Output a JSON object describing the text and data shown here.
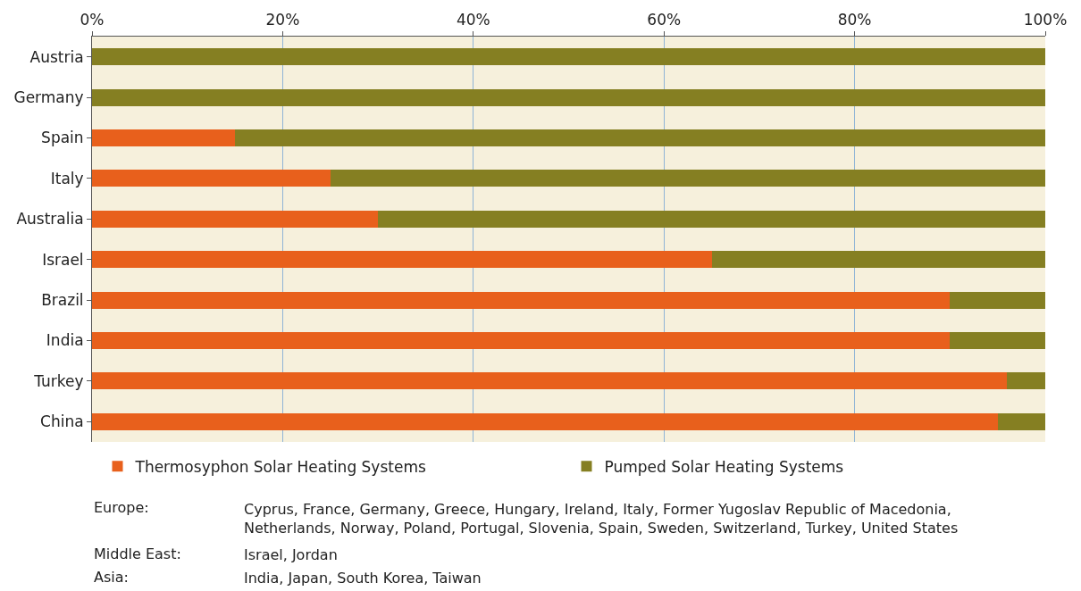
{
  "chart_data": {
    "type": "bar",
    "orientation": "horizontal",
    "stacked": true,
    "categories": [
      "Austria",
      "Germany",
      "Spain",
      "Italy",
      "Australia",
      "Israel",
      "Brazil",
      "India",
      "Turkey",
      "China"
    ],
    "series": [
      {
        "name": "Thermosyphon Solar Heating Systems",
        "color": "#e8601c",
        "values": [
          0,
          0,
          15,
          25,
          30,
          65,
          90,
          90,
          96,
          95
        ]
      },
      {
        "name": "Pumped Solar Heating Systems",
        "color": "#857f22",
        "values": [
          100,
          100,
          85,
          75,
          70,
          35,
          10,
          10,
          4,
          5
        ]
      }
    ],
    "xlim": [
      0,
      100
    ],
    "xticks": [
      {
        "value": 0,
        "label": "0%"
      },
      {
        "value": 20,
        "label": "20%"
      },
      {
        "value": 40,
        "label": "40%"
      },
      {
        "value": 60,
        "label": "60%"
      },
      {
        "value": 80,
        "label": "80%"
      },
      {
        "value": 100,
        "label": "100%"
      }
    ],
    "grid": "x",
    "legend": "bottom",
    "annotations": [
      "Europe:",
      "Cyprus, France, Germany, Greece, Hungary, Ireland, Italy, Former Yugoslav Republic of Macedonia, Netherlands, Norway, Poland, Portugal, Slovenia, Spain, Sweden, Switzerland, Turkey, United States",
      "Middle East:",
      "Israel, Jordan",
      "Asia:",
      "India, Japan, South Korea, Taiwan"
    ]
  }
}
